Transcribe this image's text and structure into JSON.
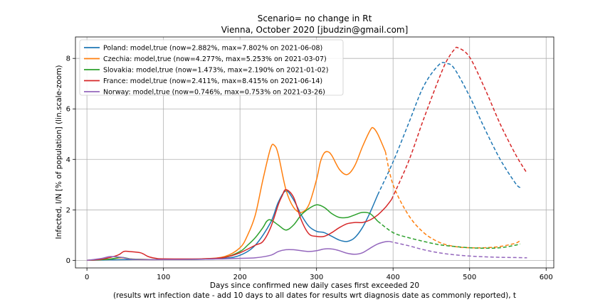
{
  "chart_data": {
    "type": "line",
    "title": "Scenario= no change in Rt",
    "subtitle": "Vienna, October 2020 [jbudzin@gmail.com]",
    "xlabel": "Days since confirmed new daily cases first exceeded 20",
    "xlabel2": "(results wrt infection date - add 10 days to all dates for results wrt diagnosis date as commonly reported), t",
    "ylabel": "Infected, I/N [% of population] (lin.scale-zoom)",
    "xlim": [
      -15,
      610
    ],
    "ylim": [
      -0.3,
      8.85
    ],
    "xticks": [
      0,
      100,
      200,
      300,
      400,
      500,
      600
    ],
    "yticks": [
      0,
      2,
      4,
      6,
      8
    ],
    "grid": true,
    "legend_position": "top-left",
    "series": [
      {
        "name": "Poland: model,true (now=2.882%, max=7.802% on 2021-06-08)",
        "color": "#1f77b4",
        "true_x": [
          0,
          30,
          60,
          100,
          150,
          180,
          200,
          220,
          240,
          250,
          260,
          270,
          280,
          290,
          300,
          310,
          320,
          330,
          340,
          350,
          360,
          370,
          380
        ],
        "true_y": [
          0,
          0.02,
          0.03,
          0.03,
          0.04,
          0.08,
          0.2,
          0.6,
          1.5,
          2.3,
          2.75,
          2.4,
          1.8,
          1.35,
          1.15,
          1.1,
          0.95,
          0.8,
          0.75,
          0.9,
          1.3,
          1.9,
          2.6
        ],
        "model_x": [
          380,
          400,
          420,
          440,
          460,
          470,
          480,
          500,
          520,
          540,
          560,
          566
        ],
        "model_y": [
          2.6,
          3.9,
          5.4,
          6.9,
          7.75,
          7.8,
          7.6,
          6.5,
          5.2,
          4.0,
          3.05,
          2.88
        ]
      },
      {
        "name": "Czechia: model,true (now=4.277%, max=5.253% on 2021-03-07)",
        "color": "#ff7f0e",
        "true_x": [
          0,
          30,
          45,
          60,
          100,
          150,
          180,
          200,
          210,
          220,
          230,
          240,
          245,
          250,
          260,
          270,
          280,
          290,
          300,
          305,
          310,
          315,
          320,
          330,
          340,
          350,
          360,
          370,
          374,
          380,
          390
        ],
        "true_y": [
          0,
          0.05,
          0.1,
          0.05,
          0.03,
          0.06,
          0.15,
          0.5,
          1.0,
          1.8,
          3.2,
          4.45,
          4.55,
          4.2,
          2.8,
          2.1,
          1.9,
          2.2,
          3.2,
          3.9,
          4.25,
          4.3,
          4.15,
          3.6,
          3.4,
          3.75,
          4.5,
          5.15,
          5.25,
          5.0,
          4.3
        ],
        "model_x": [
          390,
          400,
          420,
          440,
          460,
          480,
          500,
          520,
          540,
          560,
          566
        ],
        "model_y": [
          4.3,
          3.0,
          1.8,
          1.1,
          0.72,
          0.55,
          0.5,
          0.5,
          0.55,
          0.68,
          0.78
        ]
      },
      {
        "name": "Slovakia: model,true (now=1.473%, max=2.190% on 2021-01-02)",
        "color": "#2ca02c",
        "true_x": [
          0,
          30,
          45,
          60,
          100,
          150,
          180,
          200,
          210,
          220,
          230,
          235,
          240,
          250,
          260,
          270,
          280,
          290,
          300,
          310,
          320,
          330,
          340,
          350,
          360,
          370,
          380
        ],
        "true_y": [
          0,
          0.05,
          0.12,
          0.05,
          0.03,
          0.05,
          0.12,
          0.35,
          0.6,
          0.9,
          1.3,
          1.55,
          1.6,
          1.4,
          1.2,
          1.4,
          1.8,
          2.05,
          2.2,
          2.1,
          1.85,
          1.7,
          1.7,
          1.8,
          1.9,
          1.85,
          1.55
        ],
        "model_x": [
          380,
          400,
          420,
          440,
          460,
          480,
          500,
          520,
          540,
          560,
          566
        ],
        "model_y": [
          1.55,
          1.1,
          0.9,
          0.75,
          0.62,
          0.55,
          0.5,
          0.48,
          0.5,
          0.6,
          0.65
        ]
      },
      {
        "name": "France: model,true (now=2.411%, max=8.415% on 2021-06-14)",
        "color": "#d62728",
        "true_x": [
          0,
          20,
          40,
          48,
          55,
          70,
          80,
          90,
          100,
          150,
          180,
          200,
          220,
          230,
          240,
          250,
          255,
          260,
          270,
          280,
          290,
          300,
          310,
          320,
          330,
          340,
          350,
          360,
          370,
          380,
          390,
          398
        ],
        "true_y": [
          0,
          0.05,
          0.2,
          0.35,
          0.35,
          0.3,
          0.15,
          0.08,
          0.06,
          0.06,
          0.12,
          0.3,
          0.6,
          0.75,
          1.3,
          2.2,
          2.55,
          2.8,
          2.5,
          1.6,
          1.05,
          0.95,
          0.95,
          1.1,
          1.3,
          1.45,
          1.5,
          1.5,
          1.6,
          1.8,
          2.1,
          2.41
        ],
        "model_x": [
          398,
          420,
          440,
          460,
          470,
          480,
          485,
          500,
          520,
          540,
          560,
          575
        ],
        "model_y": [
          2.41,
          3.9,
          5.6,
          7.2,
          7.9,
          8.35,
          8.42,
          8.05,
          6.8,
          5.4,
          4.2,
          3.45
        ]
      },
      {
        "name": "Norway: model,true (now=0.746%, max=0.753% on 2021-03-26)",
        "color": "#9467bd",
        "true_x": [
          0,
          20,
          30,
          45,
          60,
          100,
          150,
          180,
          200,
          220,
          240,
          250,
          260,
          270,
          280,
          290,
          300,
          310,
          320,
          330,
          340,
          350,
          360,
          370,
          380,
          390,
          395
        ],
        "true_y": [
          0,
          0.08,
          0.15,
          0.12,
          0.04,
          0.03,
          0.04,
          0.06,
          0.08,
          0.1,
          0.2,
          0.35,
          0.42,
          0.42,
          0.38,
          0.35,
          0.38,
          0.45,
          0.45,
          0.38,
          0.28,
          0.24,
          0.3,
          0.48,
          0.65,
          0.74,
          0.75
        ],
        "model_x": [
          395,
          420,
          440,
          460,
          480,
          500,
          520,
          540,
          560,
          575
        ],
        "model_y": [
          0.75,
          0.58,
          0.42,
          0.3,
          0.22,
          0.17,
          0.14,
          0.12,
          0.11,
          0.1
        ]
      }
    ]
  }
}
